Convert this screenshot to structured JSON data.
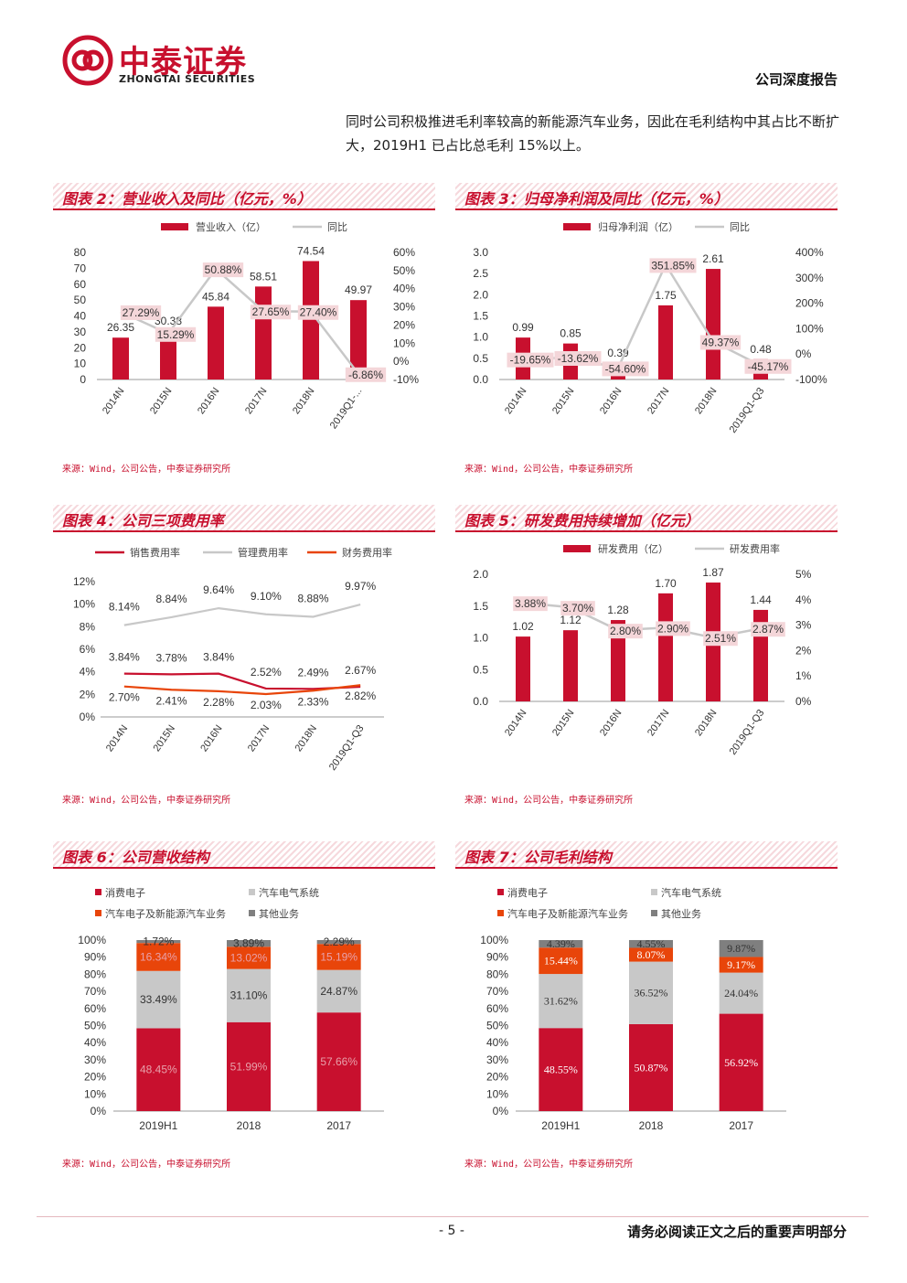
{
  "header": {
    "brand_cn": "中泰证券",
    "brand_en": "ZHONGTAI SECURITIES",
    "report_type": "公司深度报告"
  },
  "intro_text": "同时公司积极推进毛利率较高的新能源汽车业务，因此在毛利结构中其占比不断扩大，2019H1 已占比总毛利 15%以上。",
  "colors": {
    "red": "#c8102e",
    "gray": "#c8c8c8",
    "orange": "#e8450a",
    "darkgray": "#7f7f7f",
    "label_bg": "#f4d6d9"
  },
  "charts": [
    {
      "id": "c2",
      "title": "图表 2：营业收入及同比（亿元，%）",
      "source": "来源：Wind，公司公告，中泰证券研究所",
      "chart_data": {
        "type": "bar",
        "categories": [
          "2014N",
          "2015N",
          "2016N",
          "2017N",
          "2018N",
          "2019Q1-..."
        ],
        "bar_series": {
          "name": "营业收入（亿）",
          "values": [
            26.35,
            30.38,
            45.84,
            58.51,
            74.54,
            49.97
          ],
          "labels": [
            "26.35",
            "30.38",
            "45.84",
            "58.51",
            "74.54",
            "49.97"
          ]
        },
        "line_series": {
          "name": "同比",
          "values": [
            27.29,
            15.29,
            50.88,
            27.65,
            27.4,
            -6.86
          ],
          "labels": [
            "27.29%",
            "15.29%",
            "50.88%",
            "27.65%",
            "27.40%",
            "-6.86%"
          ]
        },
        "left_ticks": [
          "80",
          "70",
          "60",
          "50",
          "40",
          "30",
          "20",
          "10",
          "0"
        ],
        "ylim": [
          0,
          80
        ],
        "right_ticks": [
          "60%",
          "50%",
          "40%",
          "30%",
          "20%",
          "10%",
          "0%",
          "-10%"
        ],
        "y2lim": [
          -10,
          60
        ]
      }
    },
    {
      "id": "c3",
      "title": "图表 3：归母净利润及同比（亿元，%）",
      "source": "来源：Wind，公司公告，中泰证券研究所",
      "chart_data": {
        "type": "bar",
        "categories": [
          "2014N",
          "2015N",
          "2016N",
          "2017N",
          "2018N",
          "2019Q1-Q3"
        ],
        "bar_series": {
          "name": "归母净利润（亿）",
          "values": [
            0.99,
            0.85,
            0.39,
            1.75,
            2.61,
            0.48
          ],
          "labels": [
            "0.99",
            "0.85",
            "0.39",
            "1.75",
            "2.61",
            "0.48"
          ]
        },
        "line_series": {
          "name": "同比",
          "values": [
            -19.65,
            -13.62,
            -54.6,
            351.85,
            49.37,
            -45.17
          ],
          "labels": [
            "-19.65%",
            "-13.62%",
            "-54.60%",
            "351.85%",
            "49.37%",
            "-45.17%"
          ]
        },
        "left_ticks": [
          "3.0",
          "2.5",
          "2.0",
          "1.5",
          "1.0",
          "0.5",
          "0.0"
        ],
        "ylim": [
          0,
          3
        ],
        "right_ticks": [
          "400%",
          "300%",
          "200%",
          "100%",
          "0%",
          "-100%"
        ],
        "y2lim": [
          -100,
          400
        ]
      }
    },
    {
      "id": "c4",
      "title": "图表 4：公司三项费用率",
      "source": "来源：Wind，公司公告，中泰证券研究所",
      "chart_data": {
        "type": "line",
        "categories": [
          "2014N",
          "2015N",
          "2016N",
          "2017N",
          "2018N",
          "2019Q1-Q3"
        ],
        "series": [
          {
            "name": "销售费用率",
            "values": [
              3.84,
              3.78,
              3.84,
              2.52,
              2.49,
              2.67
            ],
            "labels": [
              "3.84%",
              "3.78%",
              "3.84%",
              "2.52%",
              "2.49%",
              "2.67%"
            ]
          },
          {
            "name": "管理费用率",
            "values": [
              8.14,
              8.84,
              9.64,
              9.1,
              8.88,
              9.97
            ],
            "labels": [
              "8.14%",
              "8.84%",
              "9.64%",
              "9.10%",
              "8.88%",
              "9.97%"
            ]
          },
          {
            "name": "财务费用率",
            "values": [
              2.7,
              2.41,
              2.28,
              2.03,
              2.33,
              2.82
            ],
            "labels": [
              "2.70%",
              "2.41%",
              "2.28%",
              "2.03%",
              "2.33%",
              "2.82%"
            ]
          }
        ],
        "left_ticks": [
          "12%",
          "10%",
          "8%",
          "6%",
          "4%",
          "2%",
          "0%"
        ],
        "ylim": [
          0,
          12
        ]
      }
    },
    {
      "id": "c5",
      "title": "图表 5：研发费用持续增加（亿元）",
      "source": "来源：Wind，公司公告，中泰证券研究所",
      "chart_data": {
        "type": "bar",
        "categories": [
          "2014N",
          "2015N",
          "2016N",
          "2017N",
          "2018N",
          "2019Q1-Q3"
        ],
        "bar_series": {
          "name": "研发费用（亿）",
          "values": [
            1.02,
            1.12,
            1.28,
            1.7,
            1.87,
            1.44
          ],
          "labels": [
            "1.02",
            "1.12",
            "1.28",
            "1.70",
            "1.87",
            "1.44"
          ]
        },
        "line_series": {
          "name": "研发费用率",
          "values": [
            3.88,
            3.7,
            2.8,
            2.9,
            2.51,
            2.87
          ],
          "labels": [
            "3.88%",
            "3.70%",
            "2.80%",
            "2.90%",
            "2.51%",
            "2.87%"
          ]
        },
        "left_ticks": [
          "2.0",
          "1.5",
          "1.0",
          "0.5",
          "0.0"
        ],
        "ylim": [
          0,
          2
        ],
        "right_ticks": [
          "5%",
          "4%",
          "3%",
          "2%",
          "1%",
          "0%"
        ],
        "y2lim": [
          0,
          5
        ]
      }
    },
    {
      "id": "c6",
      "title": "图表 6：公司营收结构",
      "source": "来源：Wind，公司公告，中泰证券研究所",
      "chart_data": {
        "type": "bar",
        "stacked": true,
        "categories": [
          "2019H1",
          "2018",
          "2017"
        ],
        "series": [
          {
            "name": "消费电子",
            "values": [
              48.45,
              51.99,
              57.66
            ],
            "labels": [
              "48.45%",
              "51.99%",
              "57.66%"
            ]
          },
          {
            "name": "汽车电气系统",
            "values": [
              33.49,
              31.1,
              24.87
            ],
            "labels": [
              "33.49%",
              "31.10%",
              "24.87%"
            ]
          },
          {
            "name": "汽车电子及新能源汽车业务",
            "values": [
              16.34,
              13.02,
              15.19
            ],
            "labels": [
              "16.34%",
              "13.02%",
              "15.19%"
            ]
          },
          {
            "name": "其他业务",
            "values": [
              1.72,
              3.89,
              2.29
            ],
            "labels": [
              "1.72%",
              "3.89%",
              "2.29%"
            ]
          }
        ],
        "left_ticks": [
          "100%",
          "90%",
          "80%",
          "70%",
          "60%",
          "50%",
          "40%",
          "30%",
          "20%",
          "10%",
          "0%"
        ],
        "ylim": [
          0,
          100
        ]
      }
    },
    {
      "id": "c7",
      "title": "图表 7：公司毛利结构",
      "source": "来源：Wind，公司公告，中泰证券研究所",
      "chart_data": {
        "type": "bar",
        "stacked": true,
        "categories": [
          "2019H1",
          "2018",
          "2017"
        ],
        "series": [
          {
            "name": "消费电子",
            "values": [
              48.55,
              50.87,
              56.92
            ],
            "labels": [
              "48.55%",
              "50.87%",
              "56.92%"
            ]
          },
          {
            "name": "汽车电气系统",
            "values": [
              31.62,
              36.52,
              24.04
            ],
            "labels": [
              "31.62%",
              "36.52%",
              "24.04%"
            ]
          },
          {
            "name": "汽车电子及新能源汽车业务",
            "values": [
              15.44,
              8.07,
              9.17
            ],
            "labels": [
              "15.44%",
              "8.07%",
              "9.17%"
            ]
          },
          {
            "name": "其他业务",
            "values": [
              4.39,
              4.55,
              9.87
            ],
            "labels": [
              "4.39%",
              "4.55%",
              "9.87%"
            ]
          }
        ],
        "left_ticks": [
          "100%",
          "90%",
          "80%",
          "70%",
          "60%",
          "50%",
          "40%",
          "30%",
          "20%",
          "10%",
          "0%"
        ],
        "ylim": [
          0,
          100
        ]
      }
    }
  ],
  "footer": {
    "page_number": "- 5 -",
    "note": "请务必阅读正文之后的重要声明部分"
  }
}
